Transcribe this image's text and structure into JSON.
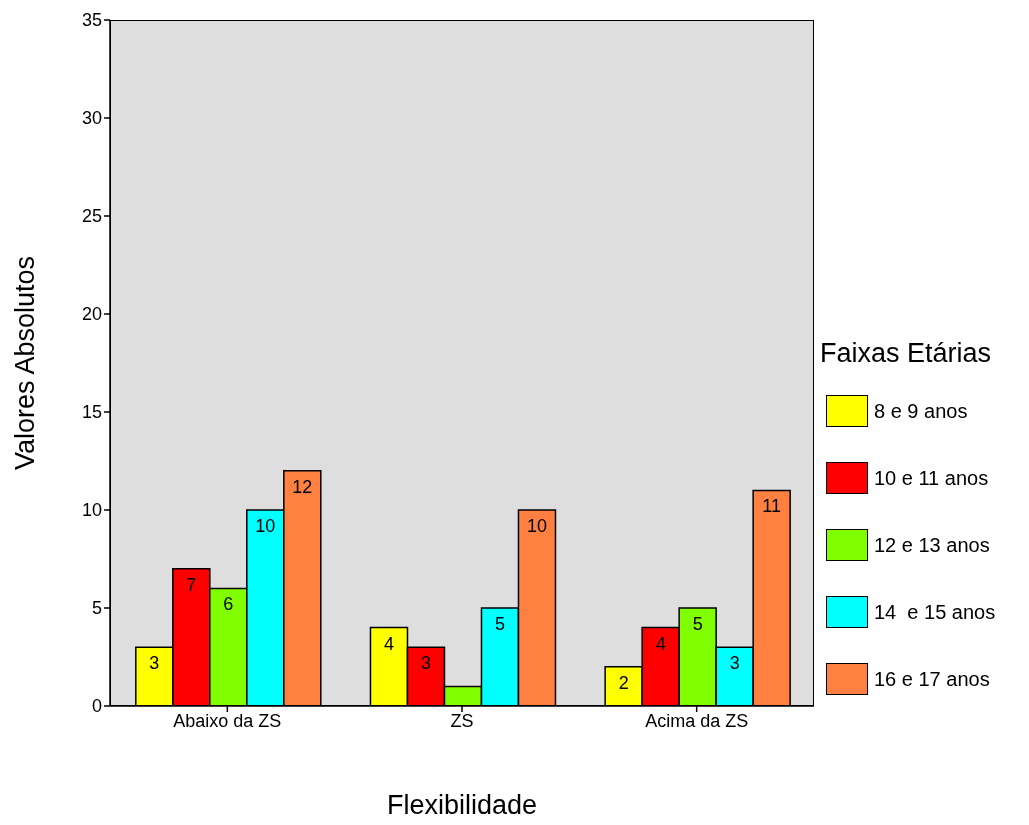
{
  "chart_data": {
    "type": "bar",
    "xlabel": "Flexibilidade",
    "ylabel": "Valores Absolutos",
    "legend_title": "Faixas Etárias",
    "categories": [
      "Abaixo da ZS",
      "ZS",
      "Acima da ZS"
    ],
    "series": [
      {
        "name": "8 e 9 anos",
        "color": "#ffff00",
        "values": [
          3,
          4,
          2
        ],
        "value_labels": [
          "3",
          "4",
          "2"
        ]
      },
      {
        "name": "10 e 11 anos",
        "color": "#ff0000",
        "values": [
          7,
          3,
          4
        ],
        "value_labels": [
          "7",
          "3",
          "4"
        ]
      },
      {
        "name": "12 e 13 anos",
        "color": "#80ff00",
        "values": [
          6,
          1,
          5
        ],
        "value_labels": [
          "6",
          null,
          "5"
        ]
      },
      {
        "name": "14  e 15 anos",
        "color": "#00ffff",
        "values": [
          10,
          5,
          3
        ],
        "value_labels": [
          "10",
          "5",
          "3"
        ]
      },
      {
        "name": "16 e 17 anos",
        "color": "#ff8040",
        "values": [
          12,
          10,
          11
        ],
        "value_labels": [
          "12",
          "10",
          "11"
        ]
      }
    ],
    "ylim": [
      0,
      35
    ],
    "yticks": [
      0,
      5,
      10,
      15,
      20,
      25,
      30,
      35
    ],
    "grid": false,
    "legend": "right"
  }
}
